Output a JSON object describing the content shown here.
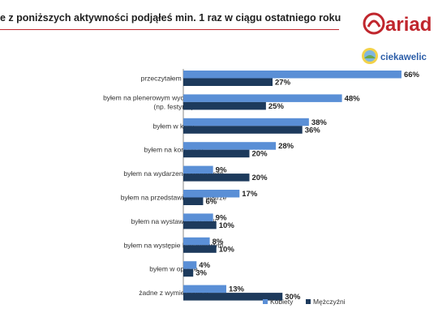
{
  "title": "e z poniższych aktywności podjąłeś min. 1 raz w ciągu ostatniego roku?",
  "logo_primary_text": "ariad",
  "logo_secondary_text": "ciekawelic",
  "colors": {
    "kobiety": "#5a8fd6",
    "mezczyzni": "#1d3a5c",
    "accent": "#c0262d"
  },
  "chart_data": {
    "type": "bar",
    "orientation": "horizontal",
    "categories": [
      [
        "przeczytałem książkę"
      ],
      [
        "byłem na plenerowym wydarzeniu kulturalnym",
        "(np. festynie)"
      ],
      [
        "byłem w kinie"
      ],
      [
        "byłem na koncercie"
      ],
      [
        "byłem na wydarzeniu sportowym"
      ],
      [
        "byłem na przedstawieniu w teatrze"
      ],
      [
        "byłem na wystawie w galerii"
      ],
      [
        "byłem na występie kabaretowym"
      ],
      [
        "byłem w operze"
      ],
      [
        "żadne z wymienionych"
      ]
    ],
    "series": [
      {
        "name": "Kobiety",
        "values": [
          66,
          48,
          38,
          28,
          9,
          17,
          9,
          8,
          4,
          13
        ]
      },
      {
        "name": "Mężczyźni",
        "values": [
          27,
          25,
          36,
          20,
          20,
          6,
          10,
          10,
          3,
          30
        ]
      }
    ],
    "value_suffix": "%",
    "xlim": [
      0,
      80
    ],
    "grid": false,
    "legend_position": "bottom-right"
  }
}
